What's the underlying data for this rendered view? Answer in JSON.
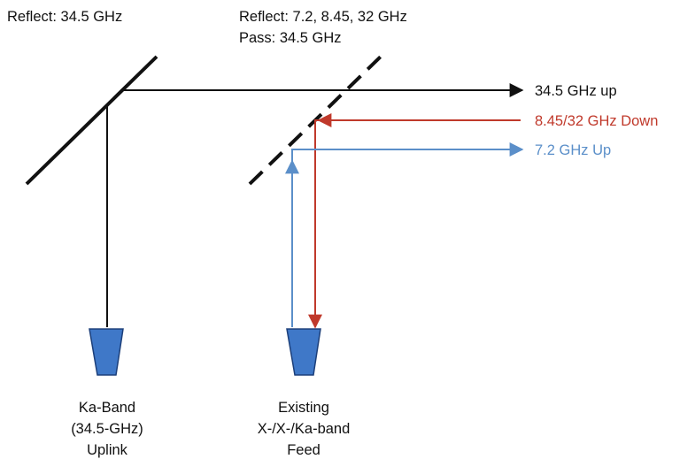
{
  "labels": {
    "mirror1": "Reflect: 34.5 GHz",
    "mirror2_line1": "Reflect: 7.2, 8.45, 32 GHz",
    "mirror2_line2": "Pass: 34.5 GHz",
    "beam_up_ka": "34.5 GHz up",
    "beam_down": "8.45/32 GHz Down",
    "beam_up_x": "7.2 GHz Up",
    "feed1": [
      "Ka-Band",
      "(34.5-GHz)",
      "Uplink"
    ],
    "feed2": [
      "Existing",
      "X-/X-/Ka-band",
      "Feed"
    ]
  },
  "colors": {
    "black": "#111111",
    "red": "#c0392b",
    "blue": "#5b8fc9",
    "feed_fill": "#3f78c8",
    "feed_stroke": "#1c3f7a"
  }
}
